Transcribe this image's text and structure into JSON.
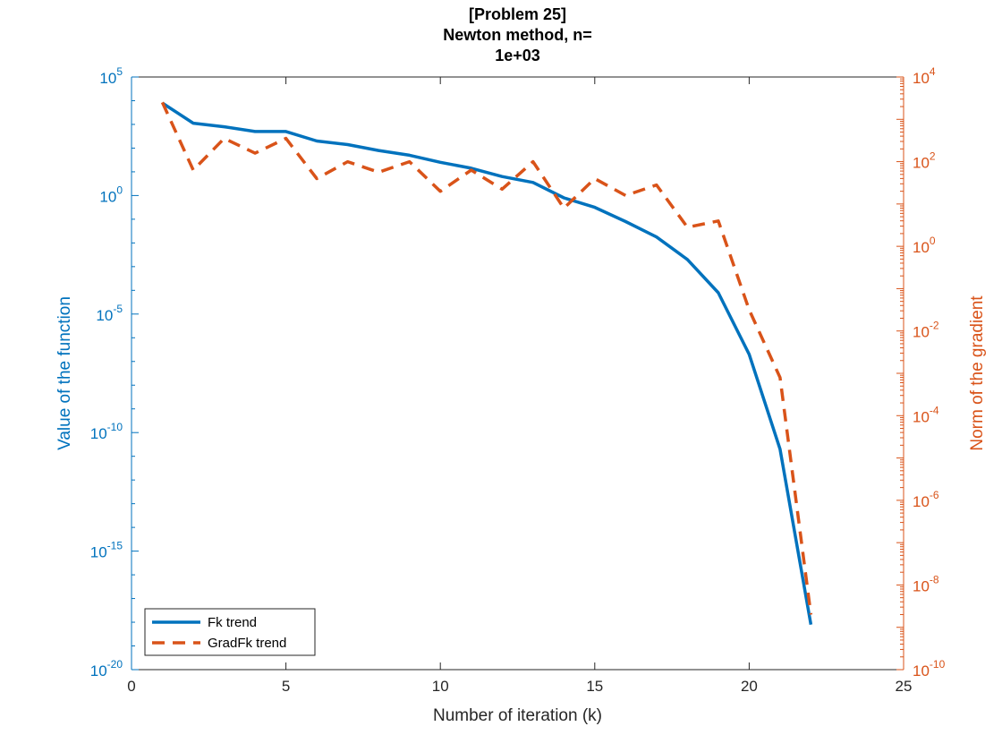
{
  "colors": {
    "left_axis": "#0072BD",
    "right_axis": "#D95319",
    "axes": "#262626"
  },
  "chart_data": {
    "type": "line",
    "title": [
      "[Problem 25]",
      "Newton method, n=",
      "1e+03"
    ],
    "xlabel": "Number of iteration (k)",
    "ylabel_left": "Value of the function",
    "ylabel_right": "Norm of the gradient",
    "xlim": [
      0,
      25
    ],
    "x_ticks": [
      "0",
      "5",
      "10",
      "15",
      "20",
      "25"
    ],
    "ylim_left_log10": [
      -20,
      5
    ],
    "ylim_right_log10": [
      -10,
      4
    ],
    "y_ticks_left": [
      {
        "base": "10",
        "exp": "5",
        "log10": 5
      },
      {
        "base": "10",
        "exp": "0",
        "log10": 0
      },
      {
        "base": "10",
        "exp": "-5",
        "log10": -5
      },
      {
        "base": "10",
        "exp": "-10",
        "log10": -10
      },
      {
        "base": "10",
        "exp": "-15",
        "log10": -15
      },
      {
        "base": "10",
        "exp": "-20",
        "log10": -20
      }
    ],
    "y_ticks_right": [
      {
        "base": "10",
        "exp": "4",
        "log10": 4
      },
      {
        "base": "10",
        "exp": "2",
        "log10": 2
      },
      {
        "base": "10",
        "exp": "0",
        "log10": 0
      },
      {
        "base": "10",
        "exp": "-2",
        "log10": -2
      },
      {
        "base": "10",
        "exp": "-4",
        "log10": -4
      },
      {
        "base": "10",
        "exp": "-6",
        "log10": -6
      },
      {
        "base": "10",
        "exp": "-8",
        "log10": -8
      },
      {
        "base": "10",
        "exp": "-10",
        "log10": -10
      }
    ],
    "yscale": "log",
    "grid": false,
    "legend_position": "bottom-left",
    "series": [
      {
        "name": "Fk trend",
        "axis": "left",
        "style": "solid",
        "color": "#0072BD",
        "x": [
          1,
          2,
          3,
          4,
          5,
          6,
          7,
          8,
          9,
          10,
          11,
          12,
          13,
          14,
          15,
          16,
          17,
          18,
          19,
          20,
          21,
          22
        ],
        "y_log10": [
          3.9,
          3.05,
          2.9,
          2.7,
          2.7,
          2.3,
          2.15,
          1.9,
          1.7,
          1.4,
          1.15,
          0.8,
          0.55,
          -0.1,
          -0.5,
          -1.1,
          -1.75,
          -2.7,
          -4.1,
          -6.7,
          -10.7,
          -18.1
        ]
      },
      {
        "name": "GradFk trend",
        "axis": "right",
        "style": "dashed",
        "color": "#D95319",
        "x": [
          1,
          2,
          3,
          4,
          5,
          6,
          7,
          8,
          9,
          10,
          11,
          12,
          13,
          14,
          15,
          16,
          17,
          18,
          19,
          20,
          21,
          22
        ],
        "y_log10": [
          3.4,
          1.8,
          2.55,
          2.2,
          2.55,
          1.6,
          2.0,
          1.75,
          2.0,
          1.3,
          1.8,
          1.35,
          2.0,
          0.9,
          1.6,
          1.2,
          1.45,
          0.45,
          0.6,
          -1.5,
          -3.1,
          -8.7
        ]
      }
    ]
  }
}
